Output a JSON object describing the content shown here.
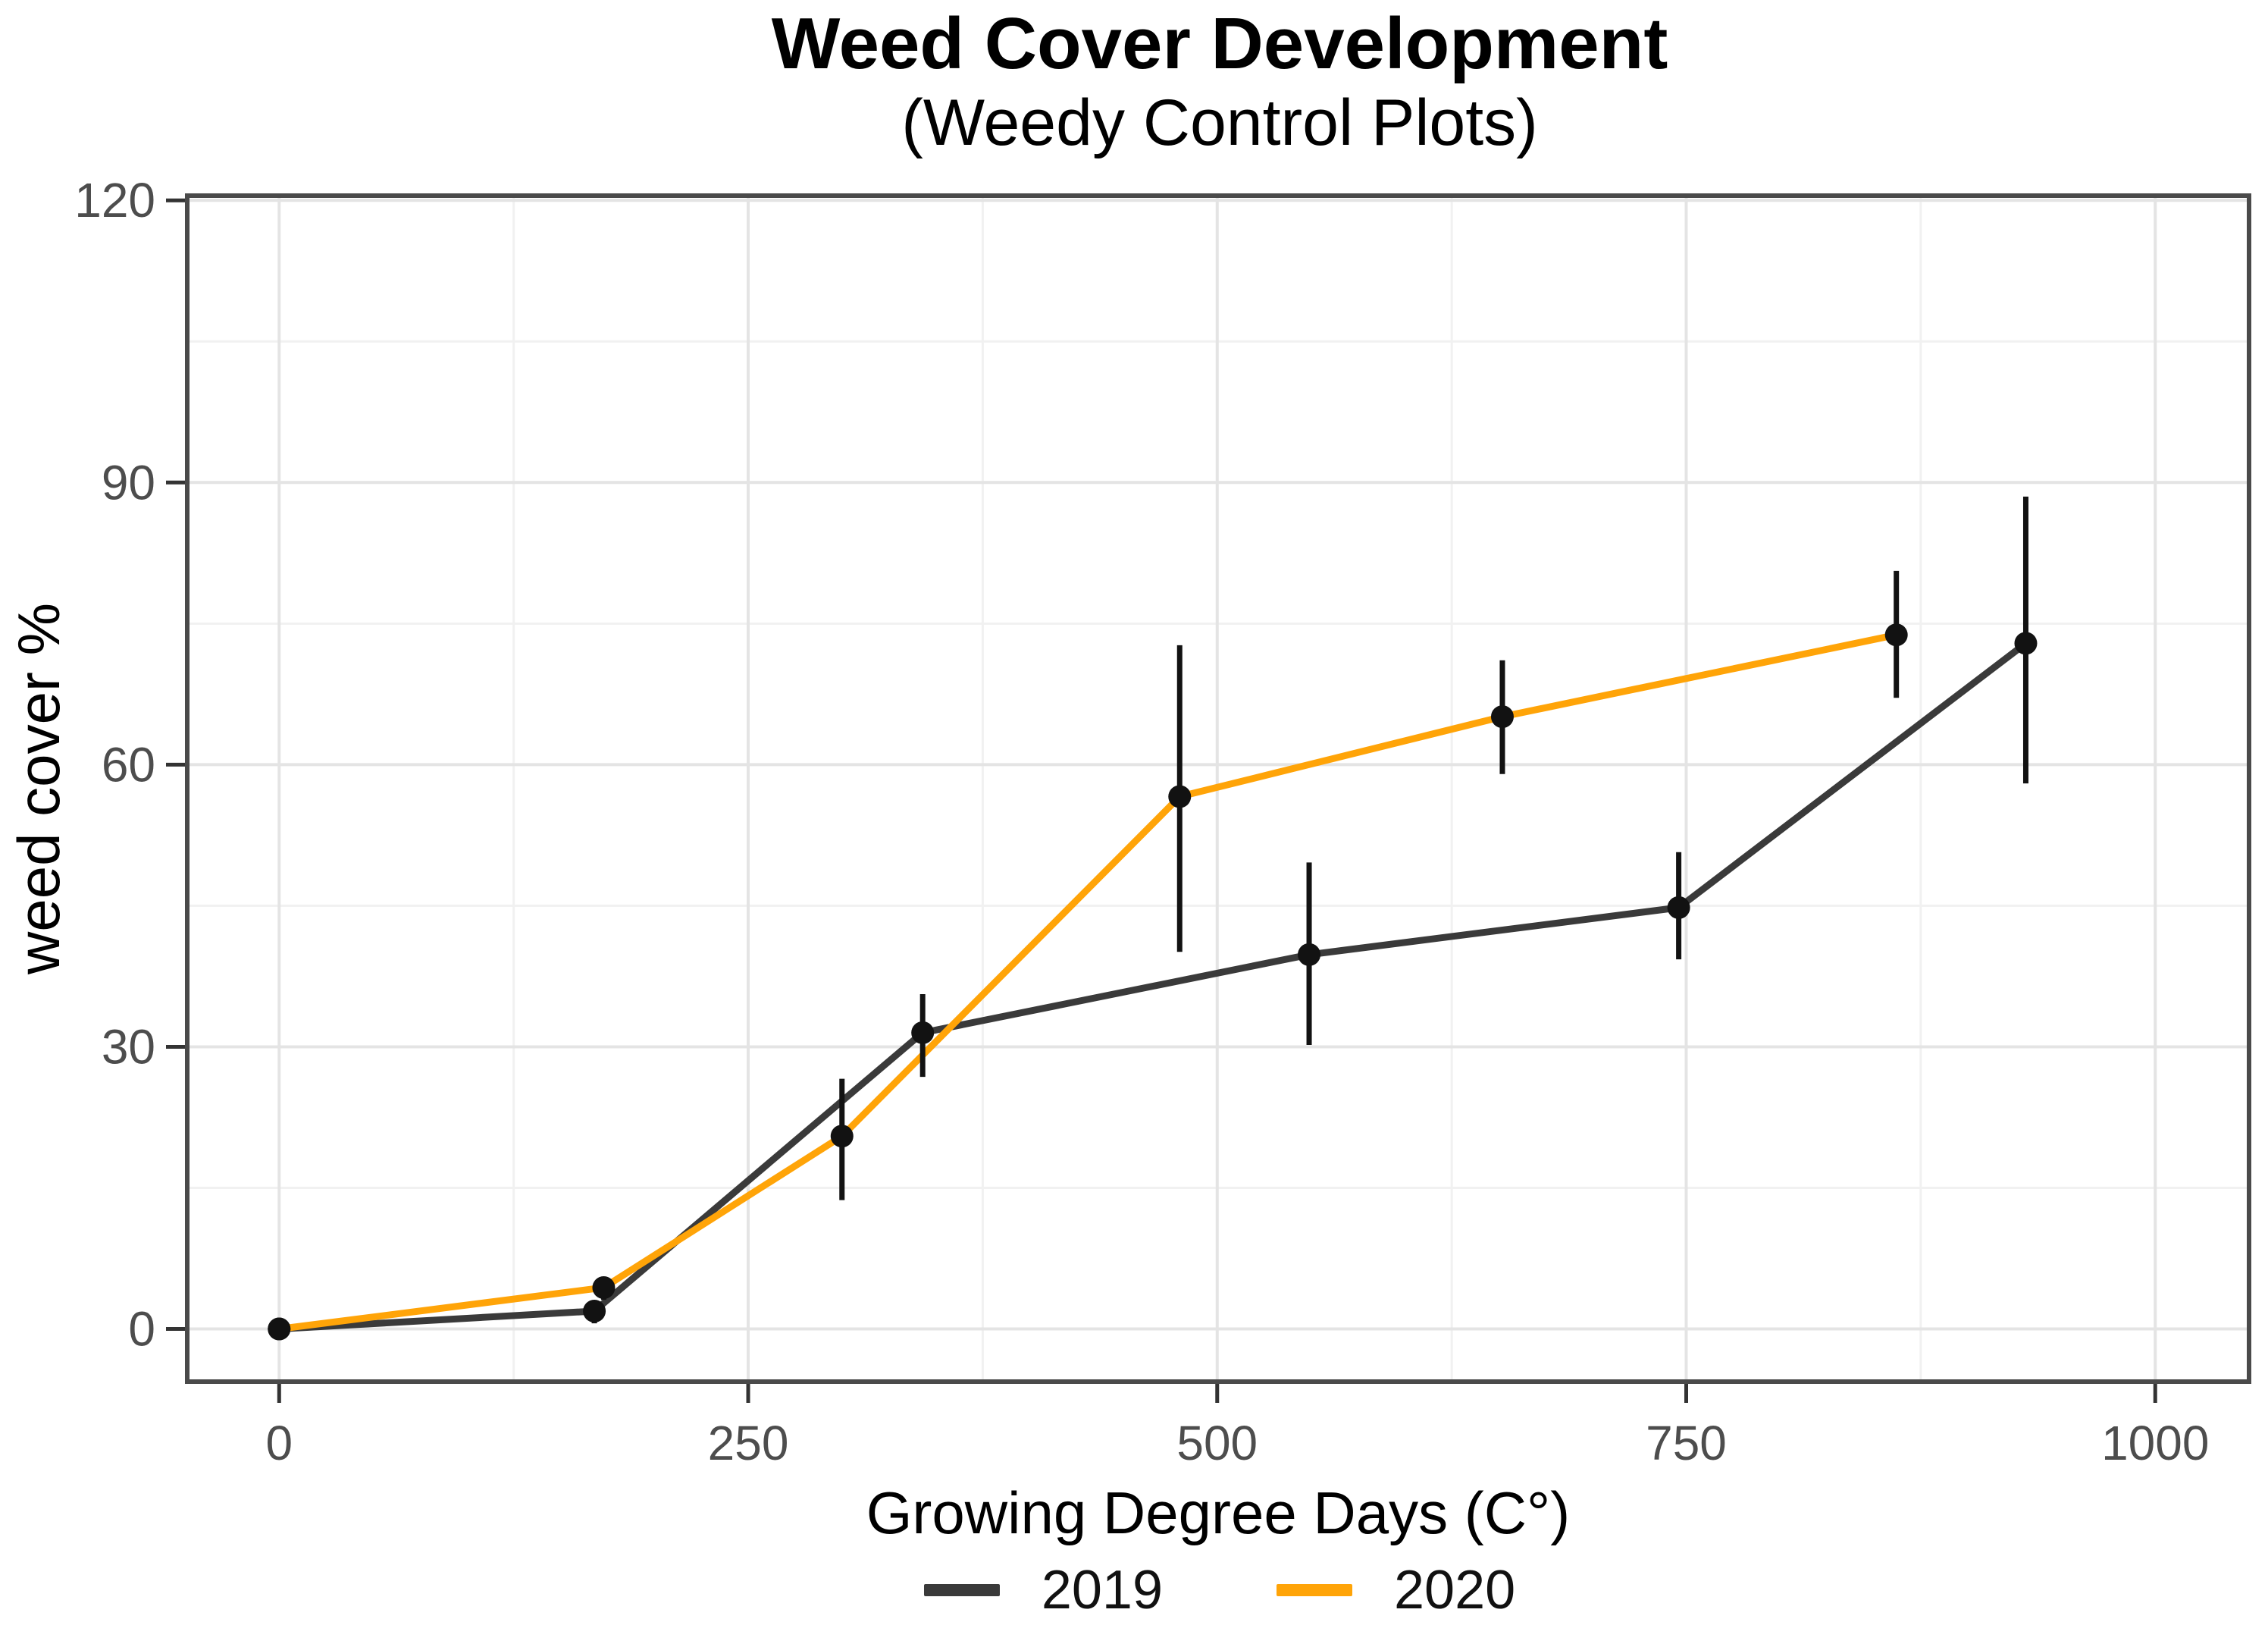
{
  "figure": {
    "title": "Weed Cover Development",
    "subtitle": "(Weedy Control Plots)"
  },
  "chart_data": {
    "type": "line",
    "title": "Weed Cover Development",
    "subtitle": "(Weedy Control Plots)",
    "xlabel": "Growing Degree Days (C°)",
    "ylabel": "weed cover %",
    "xlim": [
      -49,
      1050
    ],
    "ylim": [
      -5.6,
      120.5
    ],
    "x_major_ticks": [
      0,
      250,
      500,
      750,
      1000
    ],
    "x_tick_labels": [
      "0",
      "250",
      "500",
      "750",
      "1000"
    ],
    "x_minor_gridlines": [
      125,
      375,
      625,
      875
    ],
    "y_major_ticks": [
      0,
      30,
      60,
      90,
      120
    ],
    "y_tick_labels": [
      "0",
      "30",
      "60",
      "90",
      "120"
    ],
    "y_minor_gridlines": [
      15,
      45,
      75,
      105
    ],
    "grid": "major+minor on white panel, gray panel border",
    "legend_position": "bottom-center",
    "point_color": "#121212",
    "errorbar_color": "#121212",
    "series": [
      {
        "name": "2019",
        "color": "#3A3A3A",
        "x": [
          0,
          168,
          343,
          549,
          746,
          931
        ],
        "y": [
          0,
          1.9,
          31.5,
          39.8,
          44.8,
          72.9
        ],
        "err_low": [
          0,
          0.6,
          26.8,
          30.2,
          39.3,
          58.0
        ],
        "err_high": [
          0,
          3.0,
          35.6,
          49.6,
          50.7,
          88.5
        ]
      },
      {
        "name": "2020",
        "color": "#FFA408",
        "x": [
          0,
          173,
          300,
          480,
          652,
          862
        ],
        "y": [
          0,
          4.4,
          20.5,
          56.6,
          65.1,
          73.8
        ],
        "err_low": [
          0,
          3.1,
          13.7,
          40.1,
          59.0,
          67.1
        ],
        "err_high": [
          0,
          5.4,
          26.6,
          72.7,
          71.1,
          80.6
        ]
      }
    ],
    "colors": {
      "panel_border": "#4A4A4A",
      "grid_major": "#E4E4E4",
      "grid_minor": "#F1F1F1",
      "tick_mark": "#333333",
      "tick_label": "#4D4D4D",
      "axis_title": "#000000"
    }
  }
}
